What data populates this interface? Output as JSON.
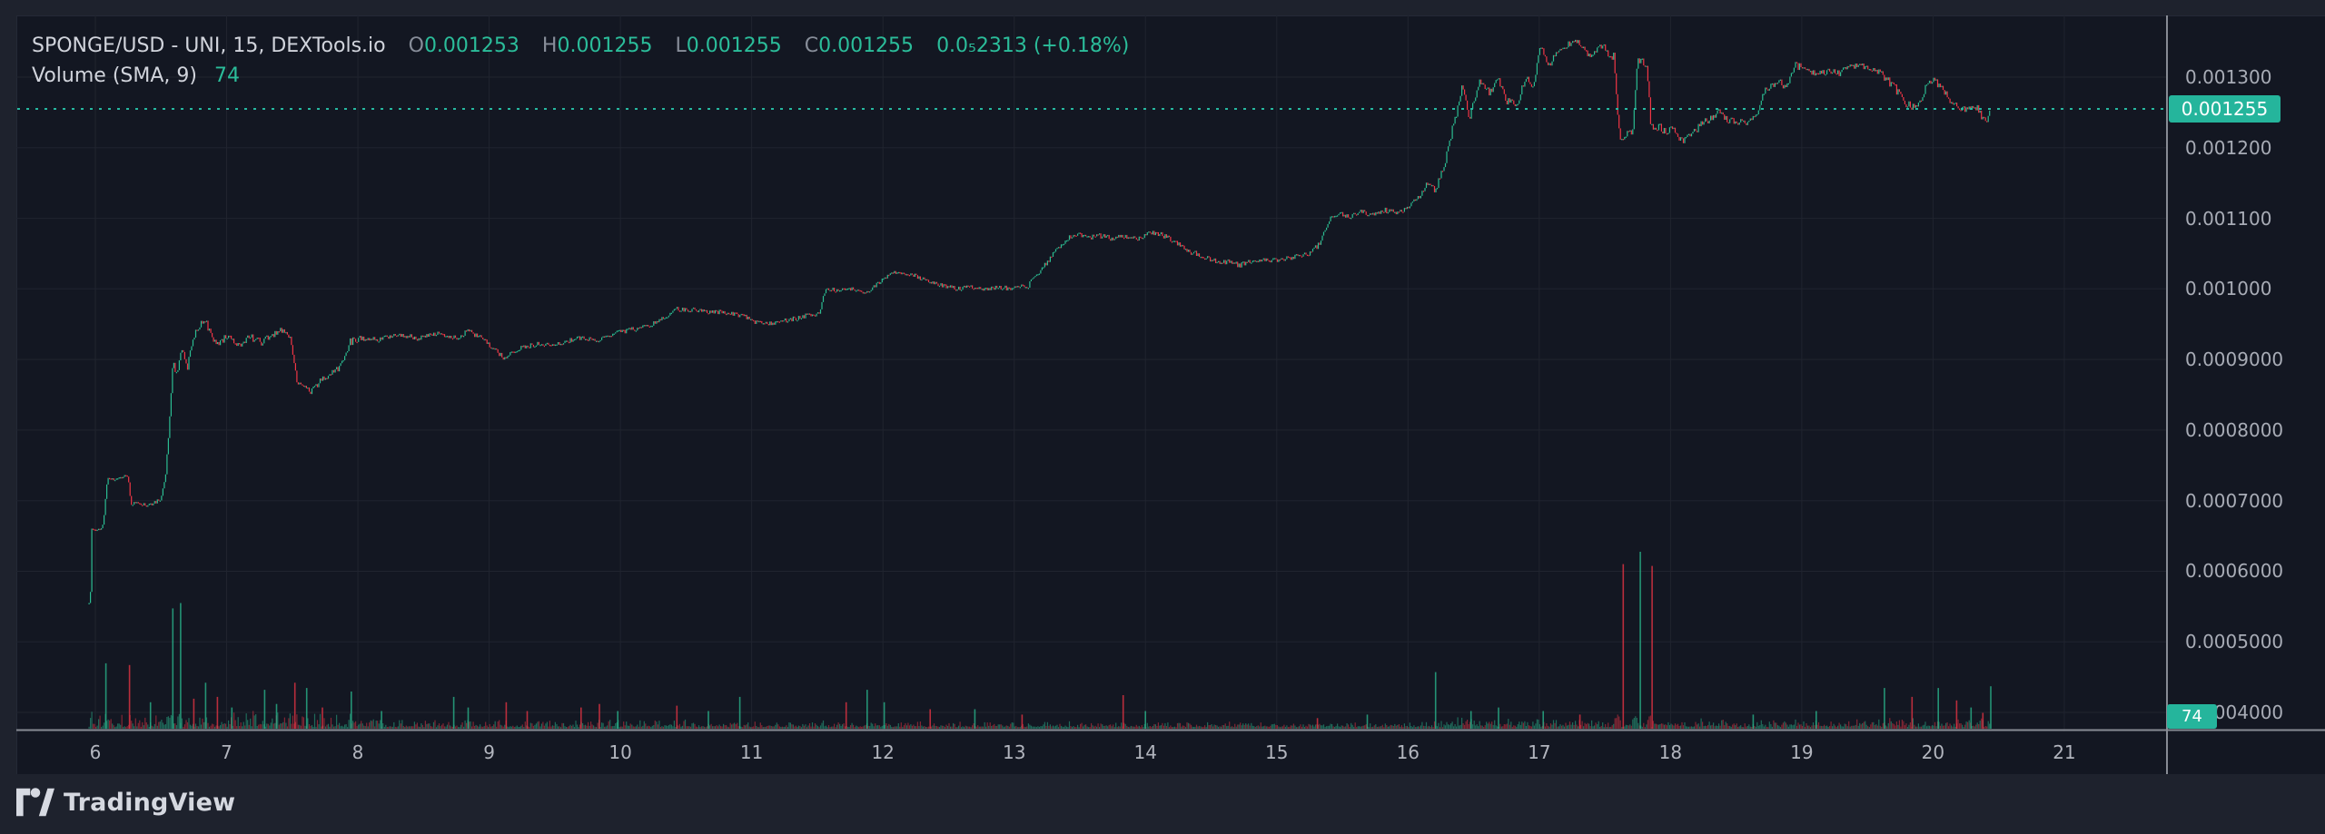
{
  "header": {
    "symbol_title": "SPONGE/USD - UNI, 15, DEXTools.io",
    "ohlc": {
      "o_label": "O",
      "o": "0.001253",
      "h_label": "H",
      "h": "0.001255",
      "l_label": "L",
      "l": "0.001255",
      "c_label": "C",
      "c": "0.001255"
    },
    "change": "0.0₅2313 (+0.18%)",
    "indicator_label": "Volume (SMA, 9)",
    "indicator_value": "74"
  },
  "price_axis": {
    "ticks": [
      {
        "text": "0.001300",
        "price": 0.0013
      },
      {
        "text": "0.001200",
        "price": 0.0012
      },
      {
        "text": "0.001100",
        "price": 0.0011
      },
      {
        "text": "0.001000",
        "price": 0.001
      },
      {
        "text": "0.0009000",
        "price": 0.0009
      },
      {
        "text": "0.0008000",
        "price": 0.0008
      },
      {
        "text": "0.0007000",
        "price": 0.0007
      },
      {
        "text": "0.0006000",
        "price": 0.0006
      },
      {
        "text": "0.0005000",
        "price": 0.0005
      },
      {
        "text": "0.0004000",
        "price": 0.0004
      }
    ],
    "last_price": 0.001255,
    "last_price_label": "0.001255"
  },
  "time_axis": {
    "unit": "day of month",
    "ticks": [
      {
        "text": "6",
        "day": 6
      },
      {
        "text": "7",
        "day": 7
      },
      {
        "text": "8",
        "day": 8
      },
      {
        "text": "9",
        "day": 9
      },
      {
        "text": "10",
        "day": 10
      },
      {
        "text": "11",
        "day": 11
      },
      {
        "text": "12",
        "day": 12
      },
      {
        "text": "13",
        "day": 13
      },
      {
        "text": "14",
        "day": 14
      },
      {
        "text": "15",
        "day": 15
      },
      {
        "text": "16",
        "day": 16
      },
      {
        "text": "17",
        "day": 17
      },
      {
        "text": "18",
        "day": 18
      },
      {
        "text": "19",
        "day": 19
      },
      {
        "text": "20",
        "day": 20
      },
      {
        "text": "21",
        "day": 21
      }
    ]
  },
  "volume_axis": {
    "current_label": "74"
  },
  "footer": {
    "logo_text": "TradingView"
  },
  "colors": {
    "up": "#2bbd92",
    "down": "#f23645",
    "accent": "#26b8a0",
    "grid": "#20242f",
    "separator": "#878b94"
  },
  "chart_data": {
    "type": "candlestick_with_volume",
    "title": "SPONGE/USD - UNI, 15, DEXTools.io",
    "symbol": "SPONGE/USD",
    "venue": "UNI",
    "interval_minutes": 15,
    "data_source": "DEXTools.io",
    "ohlc_current": {
      "open": 0.001253,
      "high": 0.001255,
      "low": 0.001255,
      "close": 0.001255,
      "change_abs": "0.0₅2313",
      "change_pct": "+0.18%"
    },
    "volume_sma_period": 9,
    "volume_current": 74,
    "x_unit": "day_of_month",
    "x_first": 5.952,
    "x_last": 20.44,
    "y_domain_visible": [
      0.000373,
      0.001387
    ],
    "grid": true,
    "last_price_line": 0.001255,
    "price_path": [
      [
        5.952,
        0.000553
      ],
      [
        5.96,
        0.000545
      ],
      [
        5.97,
        0.00066
      ],
      [
        6.03,
        0.000658
      ],
      [
        6.06,
        0.000665
      ],
      [
        6.09,
        0.00073
      ],
      [
        6.15,
        0.000728
      ],
      [
        6.21,
        0.000735
      ],
      [
        6.25,
        0.000732
      ],
      [
        6.27,
        0.000694
      ],
      [
        6.33,
        0.000697
      ],
      [
        6.4,
        0.000694
      ],
      [
        6.46,
        0.000698
      ],
      [
        6.5,
        0.000701
      ],
      [
        6.54,
        0.000745
      ],
      [
        6.57,
        0.00083
      ],
      [
        6.59,
        0.0009
      ],
      [
        6.62,
        0.000878
      ],
      [
        6.66,
        0.000918
      ],
      [
        6.7,
        0.000885
      ],
      [
        6.74,
        0.00093
      ],
      [
        6.79,
        0.000948
      ],
      [
        6.83,
        0.000957
      ],
      [
        6.89,
        0.000933
      ],
      [
        6.94,
        0.000922
      ],
      [
        7.0,
        0.000935
      ],
      [
        7.09,
        0.000921
      ],
      [
        7.17,
        0.000932
      ],
      [
        7.26,
        0.000925
      ],
      [
        7.34,
        0.000931
      ],
      [
        7.42,
        0.000942
      ],
      [
        7.49,
        0.000928
      ],
      [
        7.54,
        0.000858
      ],
      [
        7.58,
        0.000868
      ],
      [
        7.63,
        0.000853
      ],
      [
        7.71,
        0.00087
      ],
      [
        7.79,
        0.000878
      ],
      [
        7.87,
        0.000892
      ],
      [
        7.94,
        0.000925
      ],
      [
        8.01,
        0.00093
      ],
      [
        8.16,
        0.000928
      ],
      [
        8.31,
        0.000936
      ],
      [
        8.46,
        0.00093
      ],
      [
        8.61,
        0.000937
      ],
      [
        8.75,
        0.000931
      ],
      [
        8.84,
        0.00094
      ],
      [
        8.97,
        0.000927
      ],
      [
        9.05,
        0.000912
      ],
      [
        9.11,
        0.000903
      ],
      [
        9.23,
        0.000915
      ],
      [
        9.38,
        0.000923
      ],
      [
        9.53,
        0.000921
      ],
      [
        9.68,
        0.000931
      ],
      [
        9.83,
        0.000929
      ],
      [
        9.98,
        0.000938
      ],
      [
        10.12,
        0.000944
      ],
      [
        10.26,
        0.000952
      ],
      [
        10.35,
        0.00096
      ],
      [
        10.42,
        0.000972
      ],
      [
        10.56,
        0.00097
      ],
      [
        10.7,
        0.000968
      ],
      [
        10.84,
        0.000966
      ],
      [
        10.95,
        0.00096
      ],
      [
        11.02,
        0.000952
      ],
      [
        11.1,
        0.00095
      ],
      [
        11.2,
        0.000953
      ],
      [
        11.31,
        0.000957
      ],
      [
        11.42,
        0.000962
      ],
      [
        11.52,
        0.000966
      ],
      [
        11.56,
        0.001
      ],
      [
        11.66,
        0.000997
      ],
      [
        11.76,
        0.000999
      ],
      [
        11.86,
        0.000996
      ],
      [
        11.95,
        0.001005
      ],
      [
        12.02,
        0.001015
      ],
      [
        12.09,
        0.001025
      ],
      [
        12.19,
        0.001021
      ],
      [
        12.3,
        0.001015
      ],
      [
        12.41,
        0.001008
      ],
      [
        12.5,
        0.001003
      ],
      [
        12.57,
        0.001
      ],
      [
        12.68,
        0.001002
      ],
      [
        12.79,
        0.001
      ],
      [
        12.9,
        0.001002
      ],
      [
        13.0,
        0.001
      ],
      [
        13.11,
        0.001005
      ],
      [
        13.2,
        0.001025
      ],
      [
        13.3,
        0.00105
      ],
      [
        13.4,
        0.00107
      ],
      [
        13.47,
        0.001077
      ],
      [
        13.55,
        0.001072
      ],
      [
        13.65,
        0.001076
      ],
      [
        13.75,
        0.00107
      ],
      [
        13.85,
        0.001075
      ],
      [
        13.95,
        0.001071
      ],
      [
        14.05,
        0.00108
      ],
      [
        14.16,
        0.001074
      ],
      [
        14.25,
        0.001063
      ],
      [
        14.35,
        0.001052
      ],
      [
        14.44,
        0.001046
      ],
      [
        14.54,
        0.00104
      ],
      [
        14.63,
        0.001038
      ],
      [
        14.72,
        0.001034
      ],
      [
        14.82,
        0.00104
      ],
      [
        14.92,
        0.001042
      ],
      [
        15.02,
        0.00104
      ],
      [
        15.12,
        0.001045
      ],
      [
        15.24,
        0.001048
      ],
      [
        15.33,
        0.001065
      ],
      [
        15.41,
        0.0011
      ],
      [
        15.46,
        0.001107
      ],
      [
        15.55,
        0.001102
      ],
      [
        15.64,
        0.00111
      ],
      [
        15.73,
        0.001105
      ],
      [
        15.82,
        0.001112
      ],
      [
        15.9,
        0.001108
      ],
      [
        15.99,
        0.001115
      ],
      [
        16.08,
        0.00113
      ],
      [
        16.15,
        0.00115
      ],
      [
        16.21,
        0.00114
      ],
      [
        16.27,
        0.00117
      ],
      [
        16.31,
        0.0012
      ],
      [
        16.34,
        0.001229
      ],
      [
        16.38,
        0.001257
      ],
      [
        16.41,
        0.001289
      ],
      [
        16.47,
        0.001242
      ],
      [
        16.55,
        0.001296
      ],
      [
        16.62,
        0.001278
      ],
      [
        16.69,
        0.001296
      ],
      [
        16.75,
        0.001267
      ],
      [
        16.83,
        0.001261
      ],
      [
        16.9,
        0.001302
      ],
      [
        16.95,
        0.001285
      ],
      [
        17.01,
        0.001342
      ],
      [
        17.08,
        0.001317
      ],
      [
        17.12,
        0.001332
      ],
      [
        17.19,
        0.001342
      ],
      [
        17.29,
        0.001354
      ],
      [
        17.38,
        0.001328
      ],
      [
        17.43,
        0.001339
      ],
      [
        17.5,
        0.001342
      ],
      [
        17.54,
        0.00133
      ],
      [
        17.57,
        0.00133
      ],
      [
        17.59,
        0.001267
      ],
      [
        17.62,
        0.001207
      ],
      [
        17.66,
        0.00122
      ],
      [
        17.71,
        0.001225
      ],
      [
        17.75,
        0.001323
      ],
      [
        17.82,
        0.001319
      ],
      [
        17.85,
        0.001229
      ],
      [
        17.92,
        0.001229
      ],
      [
        17.96,
        0.001223
      ],
      [
        18.02,
        0.001227
      ],
      [
        18.09,
        0.00121
      ],
      [
        18.16,
        0.001221
      ],
      [
        18.23,
        0.001232
      ],
      [
        18.3,
        0.001242
      ],
      [
        18.37,
        0.001251
      ],
      [
        18.44,
        0.001239
      ],
      [
        18.51,
        0.001238
      ],
      [
        18.58,
        0.001236
      ],
      [
        18.65,
        0.001242
      ],
      [
        18.72,
        0.001283
      ],
      [
        18.79,
        0.001287
      ],
      [
        18.83,
        0.001296
      ],
      [
        18.88,
        0.001281
      ],
      [
        18.95,
        0.001317
      ],
      [
        19.02,
        0.001313
      ],
      [
        19.06,
        0.001304
      ],
      [
        19.13,
        0.001309
      ],
      [
        19.2,
        0.001309
      ],
      [
        19.27,
        0.001306
      ],
      [
        19.34,
        0.00131
      ],
      [
        19.44,
        0.001322
      ],
      [
        19.51,
        0.001309
      ],
      [
        19.58,
        0.001309
      ],
      [
        19.64,
        0.001298
      ],
      [
        19.71,
        0.001285
      ],
      [
        19.75,
        0.001272
      ],
      [
        19.79,
        0.001263
      ],
      [
        19.85,
        0.001258
      ],
      [
        19.9,
        0.001262
      ],
      [
        19.94,
        0.001285
      ],
      [
        20.01,
        0.001296
      ],
      [
        20.08,
        0.00128
      ],
      [
        20.13,
        0.001268
      ],
      [
        20.19,
        0.001257
      ],
      [
        20.26,
        0.001254
      ],
      [
        20.31,
        0.001261
      ],
      [
        20.34,
        0.001255
      ],
      [
        20.38,
        0.00124
      ],
      [
        20.41,
        0.001238
      ],
      [
        20.44,
        0.001255
      ]
    ],
    "volume_spikes_note": "day, fraction of tallest visible bar, direction",
    "volume_spikes": [
      [
        6.08,
        0.37,
        "u"
      ],
      [
        6.26,
        0.36,
        "d"
      ],
      [
        6.42,
        0.15,
        "u"
      ],
      [
        6.59,
        0.68,
        "u"
      ],
      [
        6.65,
        0.71,
        "u"
      ],
      [
        6.75,
        0.17,
        "d"
      ],
      [
        6.84,
        0.26,
        "u"
      ],
      [
        6.93,
        0.18,
        "d"
      ],
      [
        7.04,
        0.12,
        "u"
      ],
      [
        7.29,
        0.22,
        "u"
      ],
      [
        7.38,
        0.14,
        "u"
      ],
      [
        7.52,
        0.26,
        "d"
      ],
      [
        7.61,
        0.23,
        "u"
      ],
      [
        7.73,
        0.12,
        "d"
      ],
      [
        7.95,
        0.21,
        "u"
      ],
      [
        8.18,
        0.1,
        "u"
      ],
      [
        8.73,
        0.18,
        "u"
      ],
      [
        8.84,
        0.12,
        "u"
      ],
      [
        9.13,
        0.15,
        "d"
      ],
      [
        9.29,
        0.1,
        "d"
      ],
      [
        9.7,
        0.12,
        "d"
      ],
      [
        9.84,
        0.14,
        "d"
      ],
      [
        9.98,
        0.1,
        "u"
      ],
      [
        10.43,
        0.13,
        "d"
      ],
      [
        10.67,
        0.1,
        "u"
      ],
      [
        10.91,
        0.18,
        "u"
      ],
      [
        11.72,
        0.15,
        "d"
      ],
      [
        11.88,
        0.22,
        "u"
      ],
      [
        12.01,
        0.15,
        "u"
      ],
      [
        12.36,
        0.11,
        "d"
      ],
      [
        12.7,
        0.11,
        "u"
      ],
      [
        13.06,
        0.08,
        "d"
      ],
      [
        13.83,
        0.19,
        "d"
      ],
      [
        14.0,
        0.1,
        "u"
      ],
      [
        15.31,
        0.06,
        "d"
      ],
      [
        15.69,
        0.08,
        "u"
      ],
      [
        16.21,
        0.32,
        "u"
      ],
      [
        16.48,
        0.1,
        "u"
      ],
      [
        16.69,
        0.12,
        "u"
      ],
      [
        17.03,
        0.1,
        "u"
      ],
      [
        17.31,
        0.08,
        "d"
      ],
      [
        17.64,
        0.93,
        "d"
      ],
      [
        17.77,
        1.0,
        "u"
      ],
      [
        17.86,
        0.92,
        "d"
      ],
      [
        18.63,
        0.08,
        "u"
      ],
      [
        19.11,
        0.1,
        "u"
      ],
      [
        19.63,
        0.23,
        "u"
      ],
      [
        19.84,
        0.18,
        "d"
      ],
      [
        20.04,
        0.23,
        "u"
      ],
      [
        20.18,
        0.16,
        "d"
      ],
      [
        20.29,
        0.12,
        "u"
      ],
      [
        20.38,
        0.09,
        "d"
      ],
      [
        20.44,
        0.24,
        "u"
      ]
    ]
  }
}
